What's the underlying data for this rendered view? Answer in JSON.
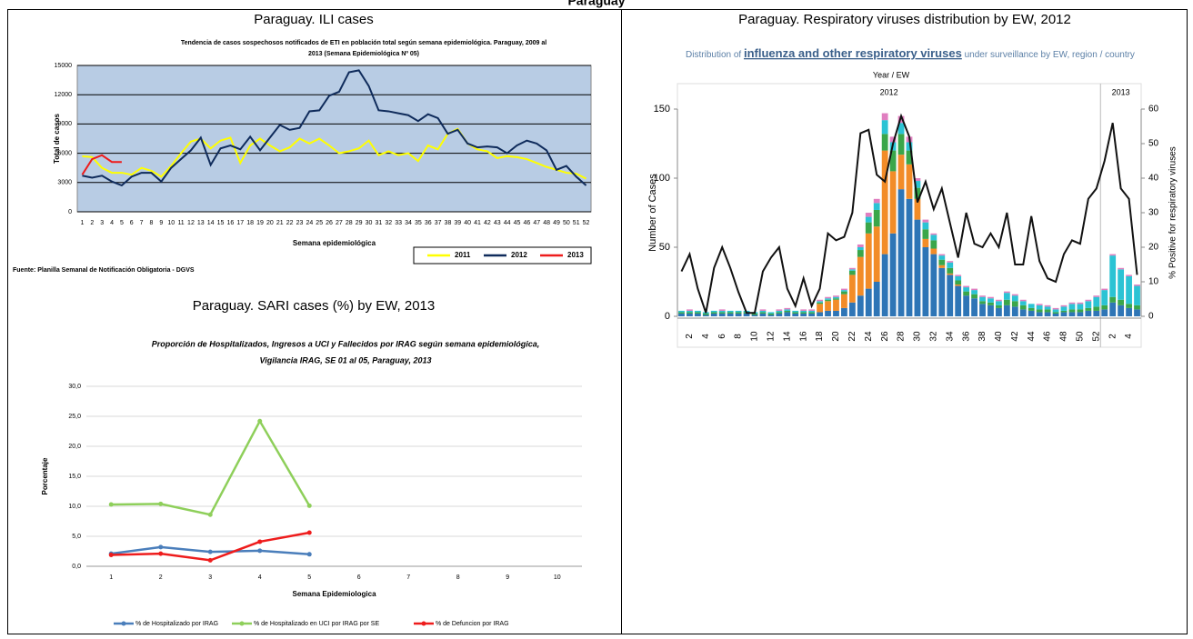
{
  "title": "Paraguay",
  "chart_data": [
    {
      "type": "line",
      "caption": "Paraguay. ILI cases",
      "title": [
        "Tendencia de casos sospechosos notificados de ETI en población total según semana epidemiológica. Paraguay, 2009 al",
        "2013 (Semana Epidemiológica Nº 05)"
      ],
      "ylabel": "Total de casos",
      "xlabel": "Semana epidemiológica",
      "source": "Fuente: Planilla Semanal de Notificación Obligatoria - DGVS",
      "x": [
        1,
        2,
        3,
        4,
        5,
        6,
        7,
        8,
        9,
        10,
        11,
        12,
        13,
        14,
        15,
        16,
        17,
        18,
        19,
        20,
        21,
        22,
        23,
        24,
        25,
        26,
        27,
        28,
        29,
        30,
        31,
        32,
        33,
        34,
        35,
        36,
        37,
        38,
        39,
        40,
        41,
        42,
        43,
        44,
        45,
        46,
        47,
        48,
        49,
        50,
        51,
        52
      ],
      "xlim": [
        0.5,
        52.5
      ],
      "ylim": [
        0,
        15000
      ],
      "yticks": [
        0,
        3000,
        6000,
        9000,
        12000,
        15000
      ],
      "grid": true,
      "background": "#b8cce4",
      "series": [
        {
          "name": "2011",
          "color": "#ffff00",
          "values": [
            5700,
            5600,
            4500,
            4000,
            4000,
            3800,
            4500,
            4200,
            3600,
            4700,
            6000,
            7200,
            7500,
            6500,
            7300,
            7600,
            5000,
            6800,
            7500,
            6800,
            6200,
            6600,
            7500,
            7000,
            7500,
            6800,
            6000,
            6200,
            6500,
            7300,
            5800,
            6200,
            5800,
            6000,
            5200,
            6800,
            6400,
            8000,
            8500,
            7000,
            6400,
            6200,
            5500,
            5700,
            5600,
            5400,
            5000,
            4600,
            4300,
            4000,
            3900,
            3400
          ]
        },
        {
          "name": "2012",
          "color": "#0f2b5b",
          "values": [
            3700,
            3500,
            3700,
            3100,
            2700,
            3600,
            4000,
            4000,
            3100,
            4500,
            5400,
            6300,
            7600,
            4800,
            6500,
            6800,
            6400,
            7700,
            6300,
            7600,
            8900,
            8400,
            8600,
            10300,
            10400,
            11900,
            12300,
            14300,
            14500,
            12900,
            10400,
            10300,
            10100,
            9900,
            9300,
            10000,
            9600,
            8000,
            8400,
            7000,
            6600,
            6700,
            6600,
            6000,
            6800,
            7300,
            7000,
            6300,
            4300,
            4700,
            3600,
            2700
          ]
        },
        {
          "name": "2013",
          "color": "#ee1c1c",
          "values": [
            3800,
            5400,
            5800,
            5100,
            5100,
            null,
            null,
            null,
            null,
            null,
            null,
            null,
            null,
            null,
            null,
            null,
            null,
            null,
            null,
            null,
            null,
            null,
            null,
            null,
            null,
            null,
            null,
            null,
            null,
            null,
            null,
            null,
            null,
            null,
            null,
            null,
            null,
            null,
            null,
            null,
            null,
            null,
            null,
            null,
            null,
            null,
            null,
            null,
            null,
            null,
            null,
            null
          ]
        }
      ]
    },
    {
      "type": "line",
      "caption": "Paraguay. SARI cases (%)  by EW, 2013",
      "title": [
        "Proporción de Hospitalizados, Ingresos a UCI y Fallecidos por IRAG según semana epidemiológica,",
        "Vigilancia IRAG, SE 01 al 05, Paraguay, 2013"
      ],
      "ylabel": "Porcentaje",
      "xlabel": "Semana Epidemiologica",
      "x": [
        1,
        2,
        3,
        4,
        5,
        6,
        7,
        8,
        9,
        10
      ],
      "xlim": [
        0.5,
        10.5
      ],
      "ylim": [
        0,
        30
      ],
      "yticks": [
        {
          "value": 0,
          "label": "0,0"
        },
        {
          "value": 5,
          "label": "5,0"
        },
        {
          "value": 10,
          "label": "10,0"
        },
        {
          "value": 15,
          "label": "15,0"
        },
        {
          "value": 20,
          "label": "20,0"
        },
        {
          "value": 25,
          "label": "25,0"
        },
        {
          "value": 30,
          "label": "30,0"
        }
      ],
      "grid": true,
      "markers": true,
      "series": [
        {
          "name": "% de Hospitalizado por IRAG",
          "color": "#4a7ebb",
          "values": [
            2.1,
            3.2,
            2.4,
            2.6,
            2.0,
            null,
            null,
            null,
            null,
            null
          ]
        },
        {
          "name": "% de Hospitalizado en UCI por IRAG por SE",
          "color": "#8ecf5a",
          "values": [
            10.3,
            10.4,
            8.6,
            24.2,
            10.1,
            null,
            null,
            null,
            null,
            null
          ]
        },
        {
          "name": "% de Defuncion por IRAG",
          "color": "#ee1c1c",
          "values": [
            1.9,
            2.1,
            1.0,
            4.1,
            5.6,
            null,
            null,
            null,
            null,
            null
          ]
        }
      ]
    },
    {
      "type": "bar",
      "stacked": true,
      "caption": "Paraguay. Respiratory viruses distribution by EW, 2012",
      "header": [
        "Distribution of",
        "influenza and other respiratory viruses",
        "under surveillance by EW, region / country"
      ],
      "axis_title": "Year / EW",
      "years": [
        "2012",
        "2013"
      ],
      "ylabel": "Number of Cases",
      "y2label": "% Positive for respiratory viruses",
      "categories": [
        null,
        "2",
        null,
        "4",
        null,
        "6",
        null,
        "8",
        null,
        "10",
        null,
        "12",
        null,
        "14",
        null,
        "16",
        null,
        "18",
        null,
        "20",
        null,
        "22",
        null,
        "24",
        null,
        "26",
        null,
        "28",
        null,
        "30",
        null,
        "32",
        null,
        "34",
        null,
        "36",
        null,
        "38",
        null,
        "40",
        null,
        "42",
        null,
        "44",
        null,
        "46",
        null,
        "48",
        null,
        "50",
        null,
        "52",
        null,
        "2",
        null,
        "4",
        null
      ],
      "ylim": [
        0,
        150
      ],
      "yticks": [
        0,
        50,
        100,
        150
      ],
      "y2lim": [
        0,
        60
      ],
      "y2ticks": [
        0,
        10,
        20,
        30,
        40,
        50,
        60
      ],
      "series": [
        {
          "color": "#2e75b6",
          "values": [
            2,
            2,
            2,
            1,
            2,
            2,
            2,
            2,
            2,
            1,
            2,
            1,
            2,
            3,
            2,
            2,
            2,
            3,
            4,
            4,
            6,
            10,
            15,
            20,
            25,
            45,
            60,
            92,
            85,
            70,
            50,
            45,
            35,
            30,
            22,
            15,
            13,
            9,
            8,
            6,
            8,
            7,
            5,
            4,
            3,
            3,
            2,
            3,
            3,
            3,
            4,
            4,
            5,
            10,
            8,
            6,
            5
          ]
        },
        {
          "color": "#f28c28",
          "values": [
            0,
            0,
            0,
            0,
            0,
            0,
            0,
            0,
            0,
            0,
            0,
            0,
            0,
            0,
            0,
            0,
            0,
            6,
            7,
            8,
            10,
            20,
            28,
            40,
            40,
            75,
            45,
            25,
            25,
            15,
            6,
            4,
            2,
            1,
            1,
            0,
            0,
            0,
            0,
            0,
            0,
            0,
            0,
            0,
            0,
            0,
            0,
            0,
            0,
            0,
            0,
            0,
            0,
            0,
            0,
            0,
            0
          ]
        },
        {
          "color": "#3aa64a",
          "values": [
            1,
            1,
            1,
            1,
            1,
            1,
            1,
            1,
            1,
            1,
            1,
            1,
            1,
            1,
            1,
            1,
            1,
            1,
            1,
            1,
            2,
            3,
            5,
            8,
            12,
            12,
            15,
            15,
            10,
            8,
            7,
            6,
            4,
            4,
            3,
            3,
            3,
            2,
            2,
            2,
            4,
            4,
            3,
            2,
            2,
            2,
            1,
            1,
            2,
            2,
            2,
            3,
            3,
            4,
            4,
            3,
            3
          ]
        },
        {
          "color": "#2bc3d4",
          "values": [
            1,
            1,
            1,
            1,
            1,
            1,
            1,
            1,
            1,
            1,
            1,
            1,
            1,
            1,
            1,
            1,
            1,
            1,
            1,
            1,
            1,
            1,
            2,
            4,
            5,
            10,
            6,
            8,
            6,
            5,
            5,
            4,
            3,
            4,
            3,
            3,
            3,
            3,
            3,
            3,
            5,
            4,
            3,
            3,
            3,
            2,
            2,
            3,
            4,
            4,
            5,
            7,
            11,
            30,
            22,
            20,
            14
          ]
        },
        {
          "color": "#e07fc0",
          "values": [
            0,
            1,
            0,
            0,
            0,
            1,
            0,
            0,
            0,
            0,
            1,
            0,
            1,
            1,
            0,
            1,
            1,
            1,
            1,
            1,
            1,
            1,
            2,
            3,
            3,
            5,
            4,
            5,
            4,
            2,
            2,
            1,
            1,
            1,
            1,
            1,
            1,
            1,
            1,
            1,
            1,
            1,
            1,
            0,
            1,
            1,
            1,
            1,
            1,
            1,
            1,
            1,
            1,
            1,
            1,
            1,
            1
          ]
        },
        {
          "type": "line",
          "axis": "y2",
          "color": "#111111",
          "values": [
            13,
            18,
            8,
            1,
            14,
            20,
            14,
            7,
            1,
            1,
            13,
            17,
            20,
            8,
            3,
            11,
            3,
            8,
            24,
            22,
            23,
            30,
            53,
            54,
            41,
            39,
            50,
            58,
            52,
            33,
            39,
            31,
            37,
            27,
            17,
            30,
            21,
            20,
            24,
            20,
            30,
            15,
            15,
            29,
            16,
            11,
            10,
            18,
            22,
            21,
            34,
            37,
            45,
            56,
            37,
            34,
            12
          ]
        }
      ]
    }
  ]
}
